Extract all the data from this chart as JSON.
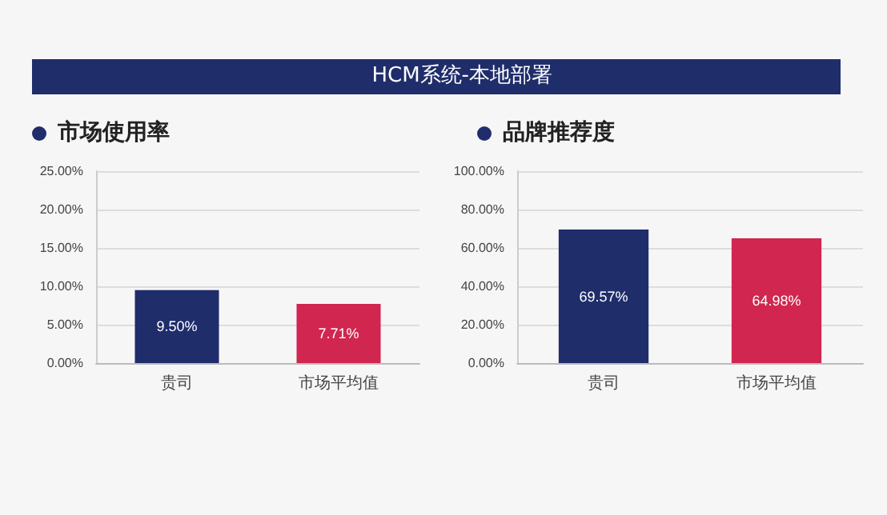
{
  "chart_data": [
    {
      "type": "other",
      "title": "HCM系统-本地部署"
    },
    {
      "type": "bar",
      "title": "市场使用率",
      "categories": [
        "贵司",
        "市场平均值"
      ],
      "values": [
        9.5,
        7.71
      ],
      "colors": [
        "#1f2d6b",
        "#d0264f"
      ],
      "value_labels": [
        "9.50%",
        "7.71%"
      ],
      "ylim": [
        0,
        25
      ],
      "yticks": [
        {
          "value": 0,
          "label": "0.00%"
        },
        {
          "value": 5,
          "label": "5.00%"
        },
        {
          "value": 10,
          "label": "10.00%"
        },
        {
          "value": 15,
          "label": "15.00%"
        },
        {
          "value": 20,
          "label": "20.00%"
        },
        {
          "value": 25,
          "label": "25.00%"
        }
      ],
      "grid": "y"
    },
    {
      "type": "bar",
      "title": "品牌推荐度",
      "categories": [
        "贵司",
        "市场平均值"
      ],
      "values": [
        69.57,
        64.98
      ],
      "colors": [
        "#1f2d6b",
        "#d0264f"
      ],
      "value_labels": [
        "69.57%",
        "64.98%"
      ],
      "ylim": [
        0,
        100
      ],
      "yticks": [
        {
          "value": 0,
          "label": "0.00%"
        },
        {
          "value": 20,
          "label": "20.00%"
        },
        {
          "value": 40,
          "label": "40.00%"
        },
        {
          "value": 60,
          "label": "60.00%"
        },
        {
          "value": 80,
          "label": "80.00%"
        },
        {
          "value": 100,
          "label": "100.00%"
        }
      ],
      "grid": "y"
    }
  ]
}
